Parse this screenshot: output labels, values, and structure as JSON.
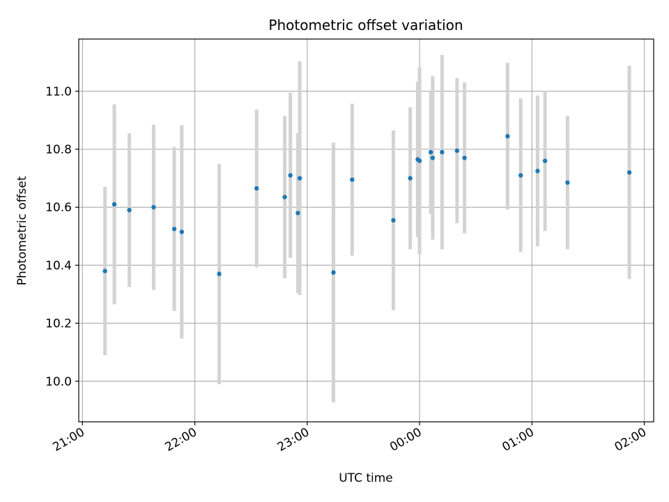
{
  "chart_data": {
    "type": "scatter",
    "title": "Photometric offset variation",
    "xlabel": "UTC time",
    "ylabel": "Photometric offset",
    "x_tick_labels": [
      "21:00",
      "22:00",
      "23:00",
      "00:00",
      "01:00",
      "02:00"
    ],
    "x_tick_times": [
      "21:00",
      "22:00",
      "23:00",
      "24:00",
      "25:00",
      "26:00"
    ],
    "y_ticks": [
      10.0,
      10.2,
      10.4,
      10.6,
      10.8,
      11.0
    ],
    "y_tick_labels": [
      "10.0",
      "10.2",
      "10.4",
      "10.6",
      "10.8",
      "11.0"
    ],
    "xlim": [
      "20:58",
      "26:05"
    ],
    "ylim": [
      9.86,
      11.18
    ],
    "grid": true,
    "colors": {
      "point": "#1f77b4",
      "errorbar": "#d3d3d3",
      "grid": "#b0b0b0"
    },
    "points": [
      {
        "time": "21:12",
        "y": 10.38,
        "err": 0.29
      },
      {
        "time": "21:17",
        "y": 10.61,
        "err": 0.345
      },
      {
        "time": "21:25",
        "y": 10.59,
        "err": 0.265
      },
      {
        "time": "21:38",
        "y": 10.6,
        "err": 0.285
      },
      {
        "time": "21:49",
        "y": 10.525,
        "err": 0.283
      },
      {
        "time": "21:53",
        "y": 10.515,
        "err": 0.368
      },
      {
        "time": "22:13",
        "y": 10.37,
        "err": 0.38
      },
      {
        "time": "22:33",
        "y": 10.665,
        "err": 0.272
      },
      {
        "time": "22:48",
        "y": 10.635,
        "err": 0.28
      },
      {
        "time": "22:51",
        "y": 10.71,
        "err": 0.285
      },
      {
        "time": "22:55",
        "y": 10.58,
        "err": 0.276
      },
      {
        "time": "22:56",
        "y": 10.7,
        "err": 0.403
      },
      {
        "time": "23:14",
        "y": 10.375,
        "err": 0.448
      },
      {
        "time": "23:24",
        "y": 10.695,
        "err": 0.262
      },
      {
        "time": "23:46",
        "y": 10.555,
        "err": 0.31
      },
      {
        "time": "23:55",
        "y": 10.7,
        "err": 0.245
      },
      {
        "time": "23:59",
        "y": 10.765,
        "err": 0.268
      },
      {
        "time": "24:00",
        "y": 10.76,
        "err": 0.322
      },
      {
        "time": "24:06",
        "y": 10.79,
        "err": 0.213
      },
      {
        "time": "24:07",
        "y": 10.77,
        "err": 0.282
      },
      {
        "time": "24:12",
        "y": 10.79,
        "err": 0.335
      },
      {
        "time": "24:20",
        "y": 10.795,
        "err": 0.25
      },
      {
        "time": "24:24",
        "y": 10.77,
        "err": 0.26
      },
      {
        "time": "24:47",
        "y": 10.845,
        "err": 0.253
      },
      {
        "time": "24:54",
        "y": 10.71,
        "err": 0.265
      },
      {
        "time": "25:03",
        "y": 10.725,
        "err": 0.26
      },
      {
        "time": "25:07",
        "y": 10.76,
        "err": 0.242
      },
      {
        "time": "25:19",
        "y": 10.685,
        "err": 0.23
      },
      {
        "time": "25:52",
        "y": 10.72,
        "err": 0.368
      }
    ]
  }
}
